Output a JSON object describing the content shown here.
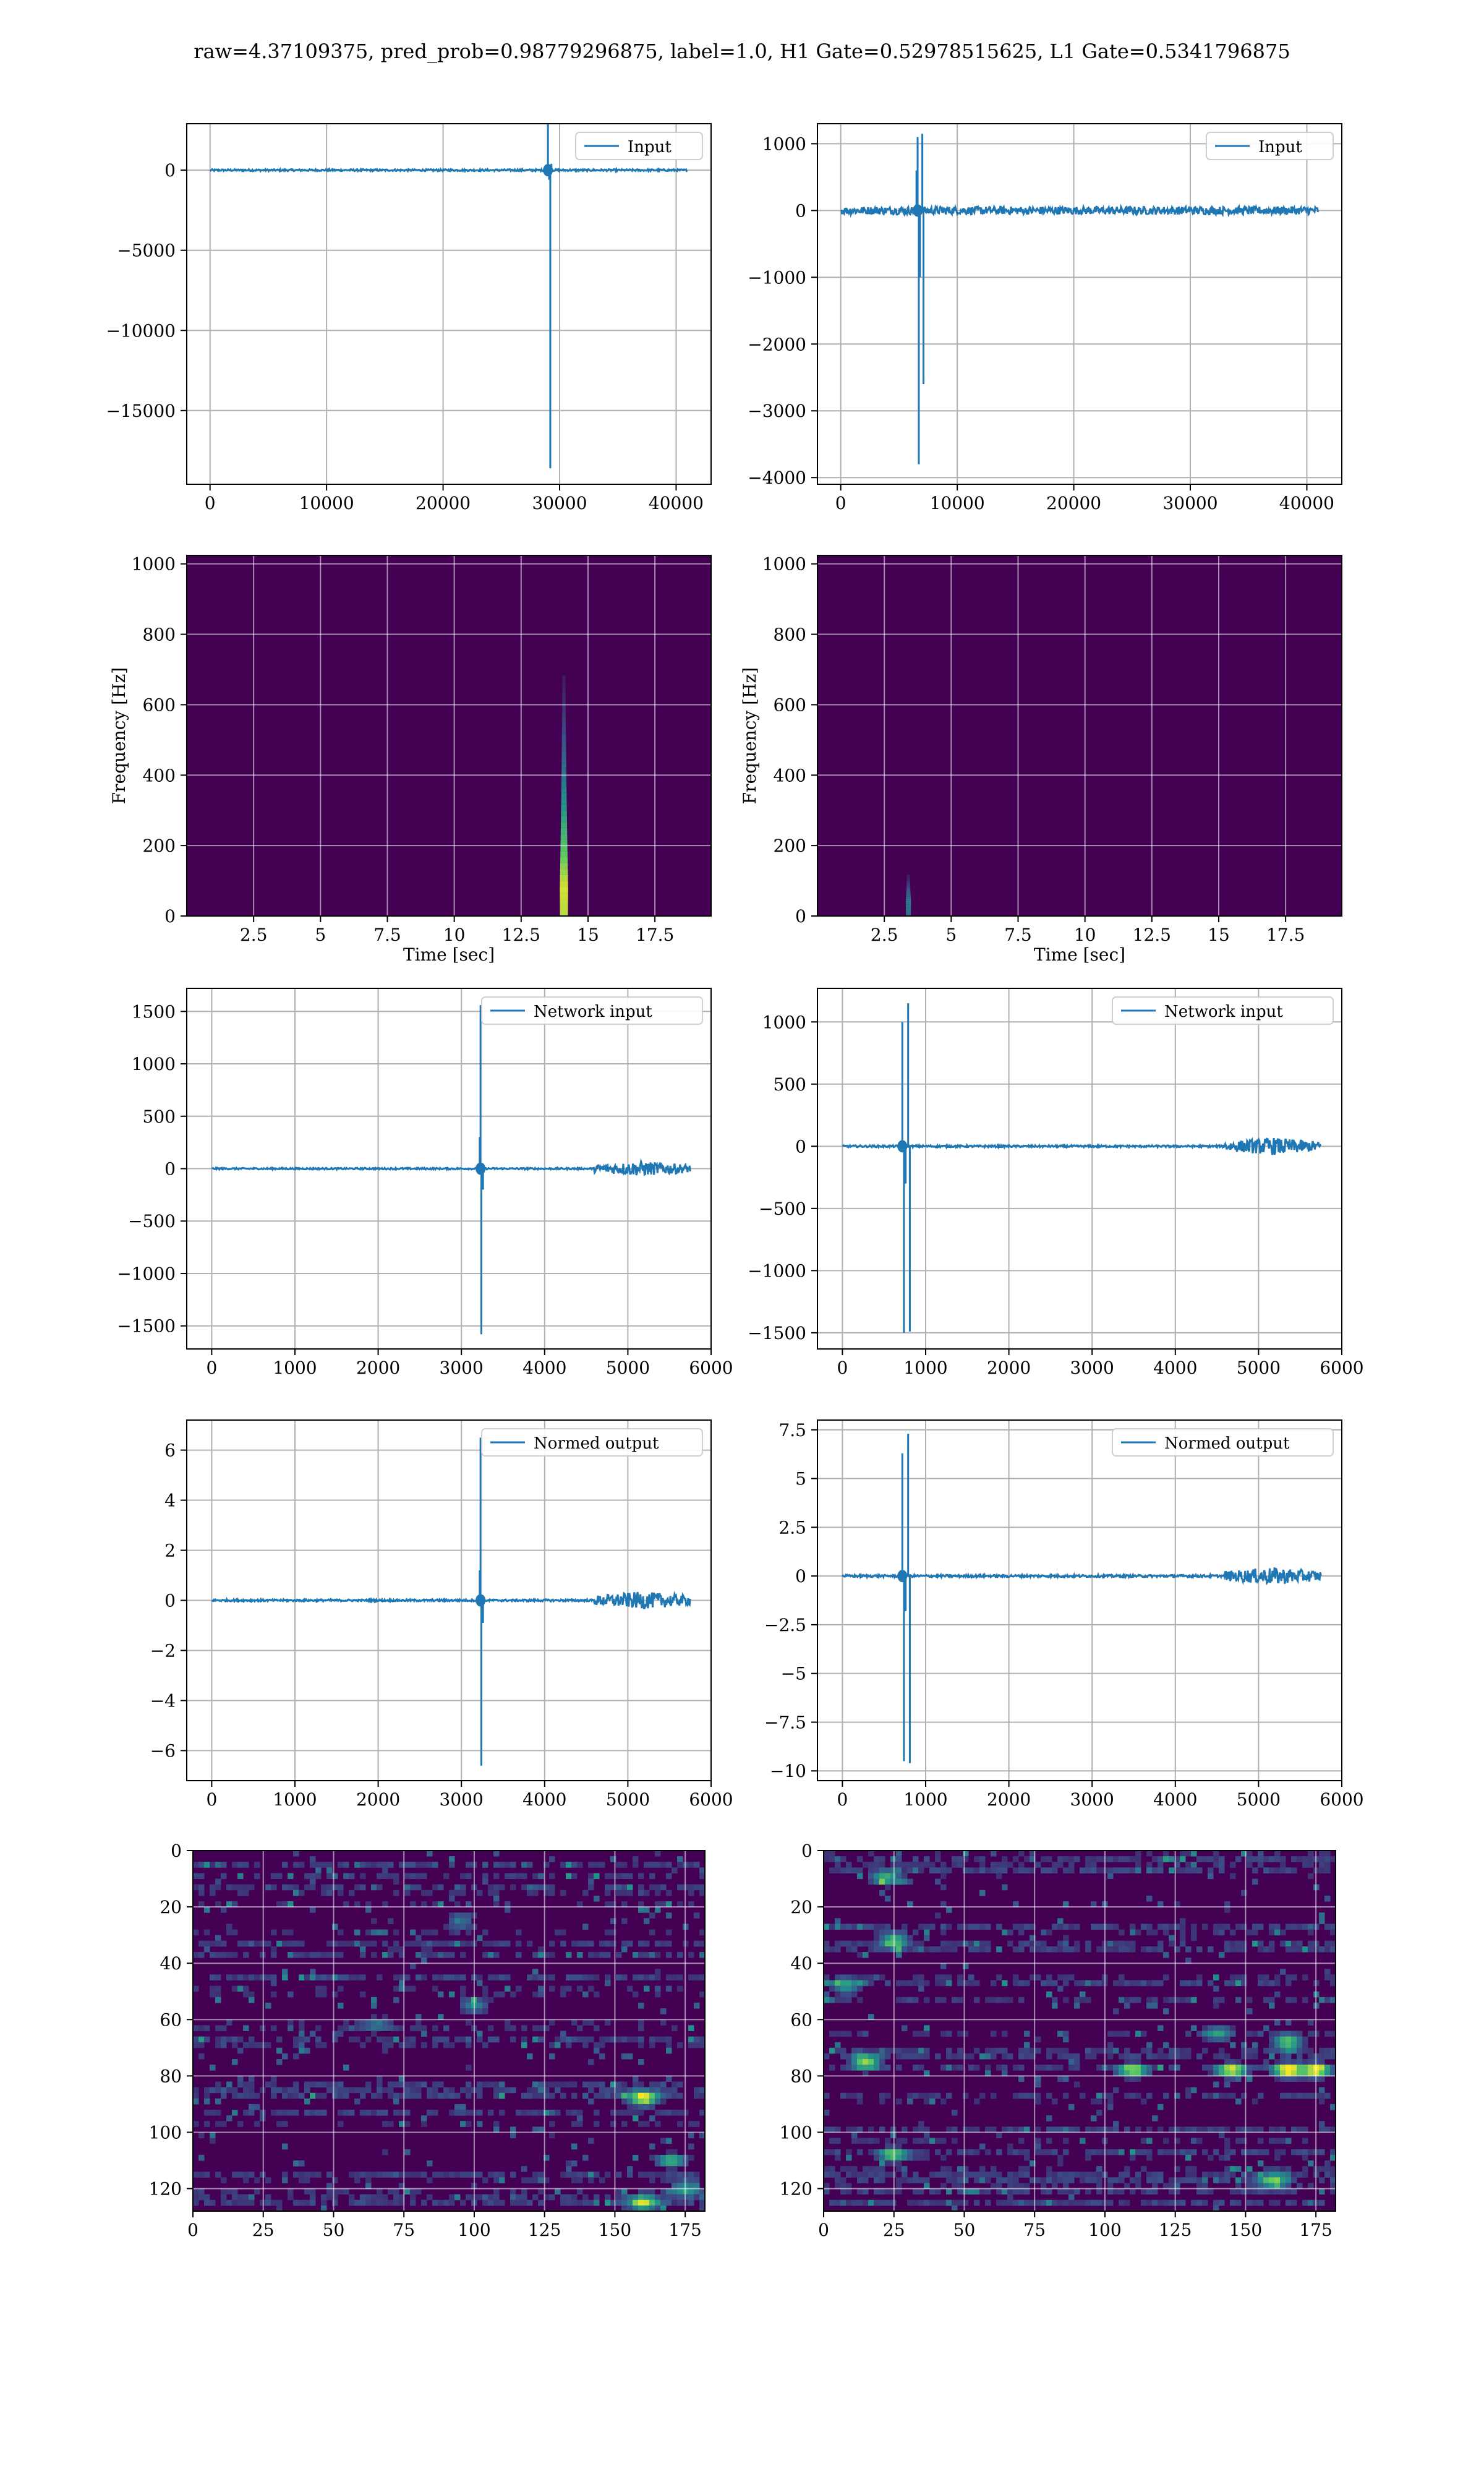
{
  "title": "raw=4.37109375, pred_prob=0.98779296875, label=1.0, H1 Gate=0.52978515625, L1 Gate=0.5341796875",
  "colors": {
    "line": "#1f77b4",
    "viridis_low": "#440154",
    "grid": "#b0b0b0"
  },
  "chart_data": [
    {
      "id": "h1-input",
      "type": "line",
      "legend": "Input",
      "legend_position": "top-right",
      "xlim": [
        -2000,
        43000
      ],
      "ylim": [
        -19600,
        2900
      ],
      "xticks": [
        0,
        10000,
        20000,
        30000,
        40000
      ],
      "yticks": [
        0,
        -5000,
        -10000,
        -15000
      ],
      "grid": true,
      "series": [
        {
          "values": {
            "baseline": [
              0,
              40960
            ],
            "noise": 60,
            "spikes": [
              [
                29000,
                2900
              ],
              [
                29200,
                -18600
              ],
              [
                29100,
                -600
              ],
              [
                29300,
                400
              ]
            ]
          }
        }
      ]
    },
    {
      "id": "l1-input",
      "type": "line",
      "legend": "Input",
      "legend_position": "top-right",
      "xlim": [
        -2000,
        43000
      ],
      "ylim": [
        -4100,
        1300
      ],
      "xticks": [
        0,
        10000,
        20000,
        30000,
        40000
      ],
      "yticks": [
        1000,
        0,
        -1000,
        -2000,
        -3000,
        -4000
      ],
      "grid": true,
      "series": [
        {
          "values": {
            "baseline": [
              0,
              40960
            ],
            "noise": 60,
            "spikes": [
              [
                6600,
                1100
              ],
              [
                6700,
                -3800
              ],
              [
                6800,
                -1000
              ],
              [
                7000,
                1150
              ],
              [
                7100,
                -2600
              ],
              [
                6500,
                600
              ]
            ]
          }
        }
      ]
    },
    {
      "id": "h1-spectrogram",
      "type": "heatmap",
      "xlabel": "Time [sec]",
      "ylabel": "Frequency [Hz]",
      "xlim": [
        0,
        19.6
      ],
      "ylim": [
        0,
        1024
      ],
      "xticks": [
        2.5,
        5.0,
        7.5,
        10.0,
        12.5,
        15.0,
        17.5
      ],
      "yticks": [
        0,
        200,
        400,
        600,
        800,
        1000
      ],
      "grid": true,
      "blobs": [
        {
          "t": 14.1,
          "f_top": 1000,
          "peak_f": 80,
          "strength": 1.0
        }
      ]
    },
    {
      "id": "l1-spectrogram",
      "type": "heatmap",
      "xlabel": "Time [sec]",
      "ylabel": "Frequency [Hz]",
      "xlim": [
        0,
        19.6
      ],
      "ylim": [
        0,
        1024
      ],
      "xticks": [
        2.5,
        5.0,
        7.5,
        10.0,
        12.5,
        15.0,
        17.5
      ],
      "yticks": [
        0,
        200,
        400,
        600,
        800,
        1000
      ],
      "grid": true,
      "blobs": [
        {
          "t": 3.4,
          "f_top": 160,
          "peak_f": 40,
          "strength": 0.55
        }
      ]
    },
    {
      "id": "h1-network-input",
      "type": "line",
      "legend": "Network input",
      "legend_position": "top-right",
      "xlim": [
        -300,
        6000
      ],
      "ylim": [
        -1720,
        1720
      ],
      "xticks": [
        0,
        1000,
        2000,
        3000,
        4000,
        5000,
        6000
      ],
      "yticks": [
        1500,
        1000,
        500,
        0,
        -500,
        -1000,
        -1500
      ],
      "grid": true,
      "series": [
        {
          "values": {
            "baseline": [
              0,
              5750
            ],
            "noise": 8,
            "noisy_region": [
              [
                4600,
                5750,
                70
              ]
            ],
            "spikes": [
              [
                3230,
                1560
              ],
              [
                3240,
                -1580
              ],
              [
                3220,
                300
              ],
              [
                3260,
                -200
              ]
            ]
          }
        }
      ]
    },
    {
      "id": "l1-network-input",
      "type": "line",
      "legend": "Network input",
      "legend_position": "top-right",
      "xlim": [
        -300,
        6000
      ],
      "ylim": [
        -1630,
        1270
      ],
      "xticks": [
        0,
        1000,
        2000,
        3000,
        4000,
        5000,
        6000
      ],
      "yticks": [
        1000,
        500,
        0,
        -500,
        -1000,
        -1500
      ],
      "grid": true,
      "series": [
        {
          "values": {
            "baseline": [
              0,
              5750
            ],
            "noise": 8,
            "noisy_region": [
              [
                4600,
                5750,
                70
              ]
            ],
            "spikes": [
              [
                720,
                1000
              ],
              [
                740,
                -1500
              ],
              [
                760,
                -300
              ],
              [
                790,
                1150
              ],
              [
                810,
                -1490
              ]
            ]
          }
        }
      ]
    },
    {
      "id": "h1-normed-output",
      "type": "line",
      "legend": "Normed output",
      "legend_position": "top-right",
      "xlim": [
        -300,
        6000
      ],
      "ylim": [
        -7.2,
        7.2
      ],
      "xticks": [
        0,
        1000,
        2000,
        3000,
        4000,
        5000,
        6000
      ],
      "yticks": [
        6,
        4,
        2,
        0,
        -2,
        -4,
        -6
      ],
      "grid": true,
      "series": [
        {
          "values": {
            "baseline": [
              0,
              5750
            ],
            "noise": 0.04,
            "noisy_region": [
              [
                4600,
                5750,
                0.35
              ]
            ],
            "spikes": [
              [
                3230,
                6.5
              ],
              [
                3240,
                -6.6
              ],
              [
                3220,
                1.2
              ],
              [
                3260,
                -0.9
              ]
            ]
          }
        }
      ]
    },
    {
      "id": "l1-normed-output",
      "type": "line",
      "legend": "Normed output",
      "legend_position": "top-right",
      "xlim": [
        -300,
        6000
      ],
      "ylim": [
        -10.5,
        8.0
      ],
      "xticks": [
        0,
        1000,
        2000,
        3000,
        4000,
        5000,
        6000
      ],
      "yticks": [
        7.5,
        5.0,
        2.5,
        0.0,
        -2.5,
        -5.0,
        -7.5,
        -10.0
      ],
      "grid": true,
      "series": [
        {
          "values": {
            "baseline": [
              0,
              5750
            ],
            "noise": 0.06,
            "noisy_region": [
              [
                4600,
                5750,
                0.45
              ]
            ],
            "spikes": [
              [
                720,
                6.3
              ],
              [
                740,
                -9.5
              ],
              [
                760,
                -1.8
              ],
              [
                790,
                7.3
              ],
              [
                810,
                -9.6
              ]
            ]
          }
        }
      ]
    },
    {
      "id": "h1-feature-map",
      "type": "heatmap",
      "xlim": [
        0,
        182
      ],
      "ylim": [
        128,
        0
      ],
      "xticks": [
        0,
        25,
        50,
        75,
        100,
        125,
        150,
        175
      ],
      "yticks": [
        0,
        20,
        40,
        60,
        80,
        100,
        120
      ],
      "grid": true,
      "hotspots": [
        [
          100,
          55,
          0.45
        ],
        [
          160,
          88,
          0.9
        ],
        [
          160,
          125,
          0.8
        ],
        [
          170,
          110,
          0.6
        ],
        [
          95,
          25,
          0.35
        ],
        [
          175,
          120,
          0.55
        ],
        [
          65,
          62,
          0.3
        ]
      ]
    },
    {
      "id": "l1-feature-map",
      "type": "heatmap",
      "xlim": [
        0,
        182
      ],
      "ylim": [
        128,
        0
      ],
      "xticks": [
        0,
        25,
        50,
        75,
        100,
        125,
        150,
        175
      ],
      "yticks": [
        0,
        20,
        40,
        60,
        80,
        100,
        120
      ],
      "grid": true,
      "hotspots": [
        [
          25,
          32,
          0.7
        ],
        [
          15,
          75,
          0.85
        ],
        [
          22,
          10,
          0.6
        ],
        [
          110,
          78,
          0.8
        ],
        [
          145,
          78,
          0.9
        ],
        [
          165,
          78,
          1.0
        ],
        [
          175,
          78,
          0.95
        ],
        [
          165,
          68,
          0.75
        ],
        [
          25,
          108,
          0.6
        ],
        [
          160,
          117,
          0.65
        ],
        [
          140,
          65,
          0.5
        ],
        [
          8,
          48,
          0.55
        ]
      ]
    }
  ]
}
